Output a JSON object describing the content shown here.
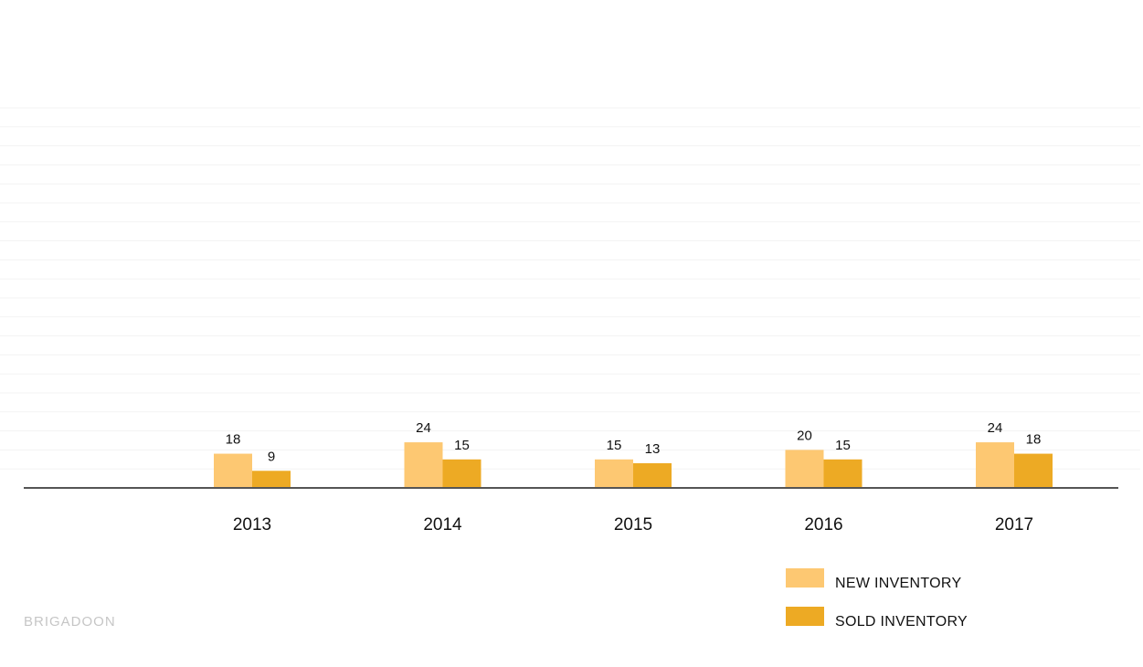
{
  "chart_data": {
    "type": "bar",
    "title": "",
    "xlabel": "",
    "ylabel": "",
    "categories": [
      "2013",
      "2014",
      "2015",
      "2016",
      "2017"
    ],
    "series": [
      {
        "name": "NEW INVENTORY",
        "values": [
          18,
          24,
          15,
          20,
          24
        ],
        "color": "#fdc872"
      },
      {
        "name": "SOLD INVENTORY",
        "values": [
          9,
          15,
          13,
          15,
          18
        ],
        "color": "#edaa24"
      }
    ],
    "ylim": [
      0,
      200
    ],
    "grid": true,
    "legend_position": "bottom-right"
  },
  "brand": "BRIGADOON"
}
